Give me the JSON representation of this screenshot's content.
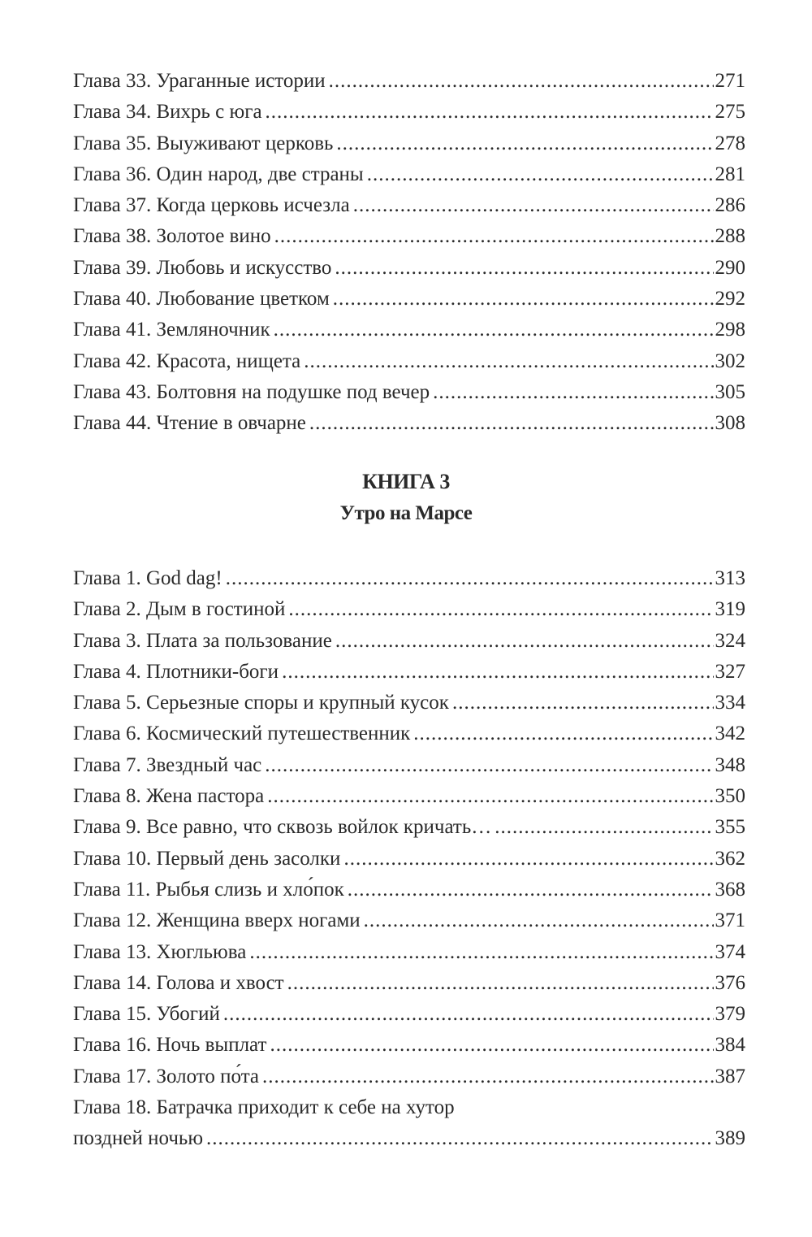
{
  "section_a": {
    "entries": [
      {
        "title": "Глава 33. Ураганные истории",
        "page": "271"
      },
      {
        "title": "Глава 34. Вихрь с юга",
        "page": "275"
      },
      {
        "title": "Глава 35. Выуживают церковь",
        "page": "278"
      },
      {
        "title": "Глава 36. Один народ, две страны",
        "page": "281"
      },
      {
        "title": "Глава 37. Когда церковь исчезла",
        "page": "286"
      },
      {
        "title": "Глава 38. Золотое вино",
        "page": "288"
      },
      {
        "title": "Глава 39. Любовь и искусство",
        "page": "290"
      },
      {
        "title": "Глава 40. Любование цветком",
        "page": "292"
      },
      {
        "title": "Глава 41. Земляночник",
        "page": "298"
      },
      {
        "title": "Глава 42. Красота, нищета",
        "page": "302"
      },
      {
        "title": "Глава 43. Болтовня на подушке под вечер",
        "page": "305"
      },
      {
        "title": "Глава 44. Чтение в овчарне",
        "page": "308"
      }
    ]
  },
  "book3": {
    "label": "КНИГА 3",
    "title": "Утро на Марсе",
    "entries": [
      {
        "title": "Глава 1. God dag!",
        "page": "313"
      },
      {
        "title": "Глава 2. Дым в гостиной",
        "page": "319"
      },
      {
        "title": "Глава 3. Плата за пользование",
        "page": "324"
      },
      {
        "title": "Глава 4. Плотники-боги",
        "page": "327"
      },
      {
        "title": "Глава 5. Серьезные споры и крупный кусок",
        "page": "334"
      },
      {
        "title": "Глава 6. Космический путешественник",
        "page": "342"
      },
      {
        "title": "Глава 7. Звездный час",
        "page": "348"
      },
      {
        "title": "Глава 8. Жена пастора",
        "page": "350"
      },
      {
        "title": "Глава 9. Все равно, что сквозь войлок кричать…",
        "page": "355"
      },
      {
        "title": "Глава 10. Первый день засолки",
        "page": "362"
      },
      {
        "title": "Глава 11. Рыбья слизь и хло́пок",
        "page": "368"
      },
      {
        "title": "Глава 12. Женщина вверх ногами",
        "page": "371"
      },
      {
        "title": "Глава 13. Хюгльюва",
        "page": "374"
      },
      {
        "title": "Глава 14. Голова и хвост",
        "page": "376"
      },
      {
        "title": "Глава 15. Убогий",
        "page": "379"
      },
      {
        "title": "Глава 16. Ночь выплат",
        "page": "384"
      },
      {
        "title": "Глава 17. Золото по́та",
        "page": "387"
      },
      {
        "title": "Глава 18. Батрачка приходит к себе на хутор",
        "title_cont": "поздней ночью",
        "page": "389"
      }
    ]
  }
}
